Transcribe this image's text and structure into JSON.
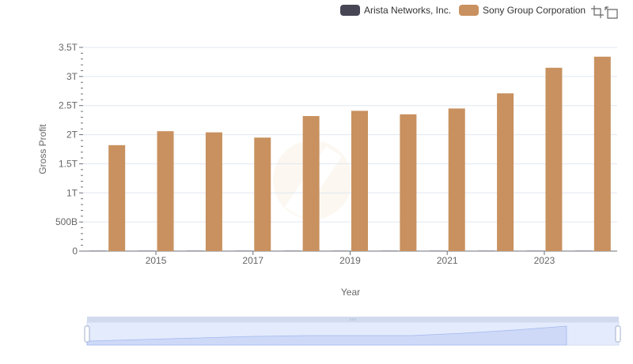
{
  "legend": [
    {
      "name": "Arista Networks, Inc.",
      "color": "#464655"
    },
    {
      "name": "Sony Group Corporation",
      "color": "#c8915f"
    }
  ],
  "toolbox": [
    {
      "icon": "zoom-icon"
    },
    {
      "icon": "reset-zoom-icon"
    }
  ],
  "chart_data": {
    "type": "bar",
    "title": "",
    "xlabel": "Year",
    "ylabel": "Gross Profit",
    "categories": [
      "2014",
      "2015",
      "2016",
      "2017",
      "2018",
      "2019",
      "2020",
      "2021",
      "2022",
      "2023",
      "2024"
    ],
    "x_tick_labels": [
      "2015",
      "2017",
      "2019",
      "2021",
      "2023"
    ],
    "y_tick_labels": [
      "0",
      "500B",
      "1T",
      "1.5T",
      "2T",
      "2.5T",
      "3T",
      "3.5T"
    ],
    "ylim": [
      0,
      3.5
    ],
    "y_unit": "trillions",
    "grid": true,
    "legend_position": "top-right",
    "series": [
      {
        "name": "Arista Networks, Inc.",
        "color": "#464655",
        "values": [
          0.0004,
          0.0006,
          0.0008,
          0.0011,
          0.0014,
          0.0017,
          0.0015,
          0.0019,
          0.0027,
          0.0035,
          0.0045
        ]
      },
      {
        "name": "Sony Group Corporation",
        "color": "#c8915f",
        "values": [
          1.82,
          2.06,
          2.04,
          1.95,
          2.32,
          2.41,
          2.35,
          2.45,
          2.71,
          3.15,
          3.34
        ]
      }
    ]
  }
}
